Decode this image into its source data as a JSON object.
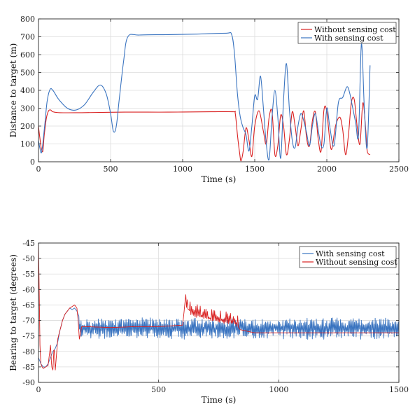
{
  "colors": {
    "blue": "#3a74c0",
    "red": "#d92020",
    "grid": "#dcdcdc",
    "axis": "#262626"
  },
  "chart_data": [
    {
      "type": "line",
      "title": "",
      "xlabel": "Time (s)",
      "ylabel": "Distance to target (m)",
      "xlim": [
        0,
        2500
      ],
      "ylim": [
        0,
        800
      ],
      "xticks": [
        0,
        500,
        1000,
        1500,
        2000,
        2500
      ],
      "yticks": [
        0,
        100,
        200,
        300,
        400,
        500,
        600,
        700,
        800
      ],
      "grid": true,
      "legend_position": "top-right",
      "legend": [
        "Without sensing cost",
        "With sensing cost"
      ],
      "series": [
        {
          "name": "Without sensing cost",
          "color": "red",
          "x": [
            0,
            10,
            20,
            30,
            40,
            55,
            70,
            85,
            100,
            150,
            300,
            600,
            900,
            1200,
            1350,
            1365,
            1380,
            1395,
            1405,
            1420,
            1440,
            1460,
            1480,
            1500,
            1530,
            1560,
            1580,
            1600,
            1620,
            1640,
            1660,
            1680,
            1700,
            1720,
            1740,
            1760,
            1780,
            1800,
            1820,
            1840,
            1860,
            1880,
            1900,
            1920,
            1940,
            1960,
            1980,
            2000,
            2030,
            2060,
            2090,
            2110,
            2130,
            2150,
            2170,
            2190,
            2210,
            2230,
            2250,
            2270,
            2280,
            2300
          ],
          "values": [
            200,
            130,
            75,
            60,
            150,
            245,
            285,
            290,
            280,
            275,
            275,
            278,
            278,
            280,
            280,
            270,
            150,
            50,
            5,
            60,
            190,
            120,
            30,
            200,
            285,
            170,
            100,
            250,
            280,
            40,
            90,
            260,
            200,
            40,
            120,
            280,
            200,
            90,
            180,
            285,
            130,
            90,
            230,
            280,
            130,
            60,
            290,
            280,
            70,
            200,
            250,
            180,
            40,
            150,
            330,
            350,
            200,
            100,
            330,
            180,
            60,
            40
          ]
        },
        {
          "name": "With sensing cost",
          "color": "blue",
          "x": [
            0,
            10,
            20,
            30,
            45,
            60,
            80,
            100,
            140,
            200,
            260,
            320,
            380,
            430,
            470,
            500,
            520,
            540,
            560,
            590,
            620,
            700,
            900,
            1100,
            1300,
            1340,
            1360,
            1380,
            1400,
            1420,
            1440,
            1460,
            1480,
            1500,
            1520,
            1540,
            1560,
            1580,
            1600,
            1620,
            1640,
            1660,
            1680,
            1700,
            1720,
            1740,
            1760,
            1780,
            1800,
            1820,
            1840,
            1860,
            1880,
            1900,
            1920,
            1940,
            1960,
            1980,
            2000,
            2020,
            2050,
            2080,
            2110,
            2140,
            2160,
            2180,
            2200,
            2220,
            2240,
            2260,
            2280,
            2300
          ],
          "values": [
            120,
            75,
            50,
            100,
            220,
            340,
            405,
            400,
            350,
            300,
            290,
            320,
            390,
            430,
            380,
            270,
            170,
            200,
            350,
            560,
            700,
            710,
            712,
            715,
            720,
            712,
            600,
            380,
            250,
            190,
            150,
            60,
            200,
            370,
            350,
            480,
            300,
            100,
            15,
            250,
            400,
            250,
            20,
            350,
            550,
            300,
            120,
            80,
            200,
            270,
            230,
            160,
            90,
            200,
            270,
            180,
            90,
            100,
            300,
            200,
            90,
            330,
            360,
            420,
            380,
            300,
            220,
            150,
            660,
            300,
            80,
            540
          ]
        }
      ]
    },
    {
      "type": "line",
      "title": "",
      "xlabel": "Time (s)",
      "ylabel": "Bearing to target (degrees)",
      "xlim": [
        0,
        1500
      ],
      "ylim": [
        -90,
        -45
      ],
      "xticks": [
        0,
        500,
        1000,
        1500
      ],
      "yticks": [
        -45,
        -50,
        -55,
        -60,
        -65,
        -70,
        -75,
        -80,
        -85,
        -90
      ],
      "grid": true,
      "legend_position": "top-right",
      "legend": [
        "With sensing cost",
        "Without sensing cost"
      ],
      "series": [
        {
          "name": "With sensing cost",
          "color": "blue",
          "x": [
            0,
            10,
            20,
            30,
            40,
            50,
            60,
            70,
            80,
            90,
            100,
            110,
            120,
            130,
            140,
            150,
            160,
            170,
            180,
            190,
            200
          ],
          "values": [
            -82,
            -84,
            -85,
            -85,
            -84,
            -82,
            -80,
            -79,
            -77,
            -73,
            -70,
            -68,
            -67,
            -66,
            -66.5,
            -66,
            -67,
            -69,
            -72,
            -73,
            -72
          ],
          "noise": {
            "x_start": 170,
            "x_end": 1500,
            "base": -72.5,
            "amplitude": 4.5,
            "step": 2.4
          }
        },
        {
          "name": "Without sensing cost",
          "color": "red",
          "x": [
            0,
            3,
            6,
            10,
            15,
            20,
            30,
            40,
            50,
            55,
            60,
            65,
            70,
            80,
            90,
            100,
            110,
            120,
            130,
            140,
            150,
            160,
            165,
            170,
            180,
            200,
            300,
            400,
            500,
            600,
            610,
            620,
            640,
            700,
            760,
            820,
            840,
            900,
            1000,
            1200,
            1500
          ],
          "values": [
            -45,
            -60,
            -78,
            -84,
            -85,
            -85.5,
            -85,
            -84.5,
            -78,
            -85,
            -86,
            -78,
            -86,
            -76,
            -73,
            -70,
            -68,
            -67,
            -66,
            -65.5,
            -65,
            -66,
            -70,
            -76,
            -72,
            -72,
            -72.3,
            -72,
            -72,
            -71.5,
            -64,
            -66,
            -68,
            -69,
            -70,
            -71,
            -73,
            -74,
            -74,
            -74,
            -74
          ],
          "noise": {
            "x_start": 610,
            "x_end": 830,
            "amplitude": 3.5,
            "step": 3
          }
        }
      ]
    }
  ]
}
